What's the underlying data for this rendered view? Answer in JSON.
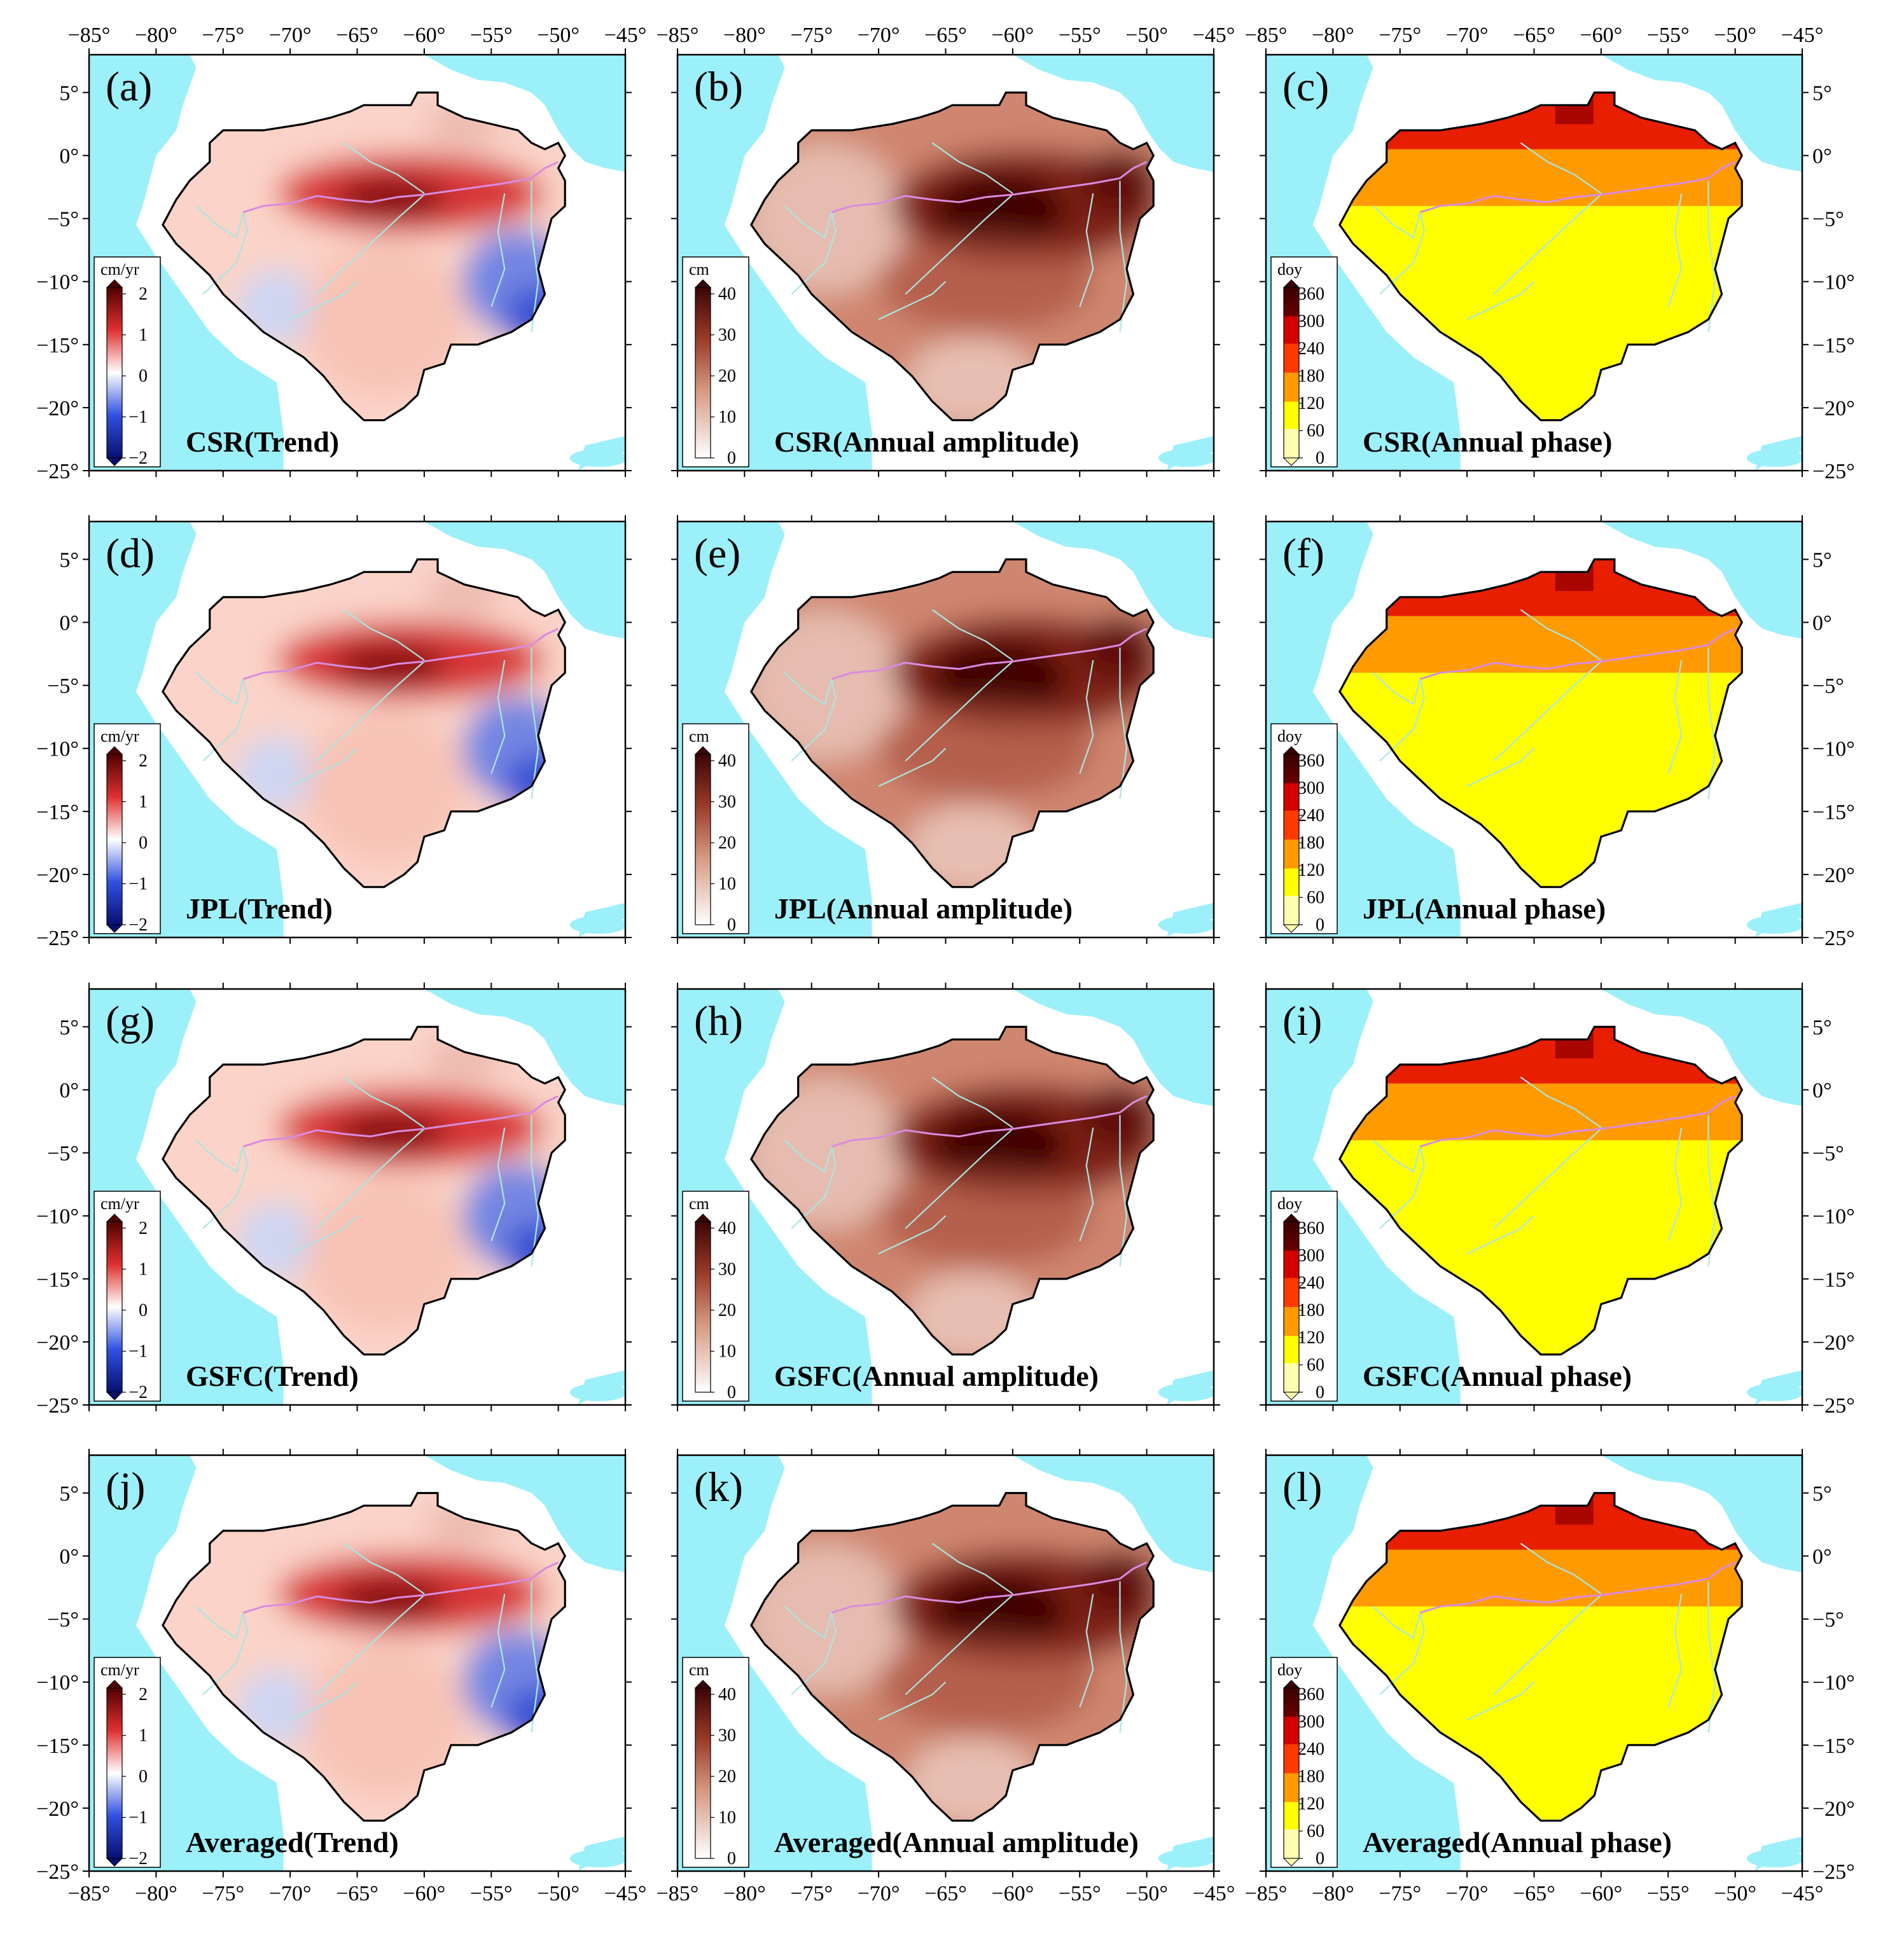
{
  "figure": {
    "x_axis_labels": [
      "−85°",
      "−80°",
      "−75°",
      "−70°",
      "−65°",
      "−60°",
      "−55°",
      "−50°",
      "−45°"
    ],
    "y_axis_labels": [
      "5°",
      "0°",
      "−5°",
      "−10°",
      "−15°",
      "−20°",
      "−25°"
    ],
    "lon_range": [
      -85,
      -45
    ],
    "lat_range": [
      -25,
      8
    ]
  },
  "colorbars": {
    "trend": {
      "unit": "cm/yr",
      "ticks": [
        "2",
        "1",
        "0",
        "−1",
        "−2"
      ]
    },
    "amplitude": {
      "unit": "cm",
      "ticks": [
        "40",
        "30",
        "20",
        "10",
        "0"
      ]
    },
    "phase": {
      "unit": "doy",
      "ticks": [
        "360",
        "300",
        "240",
        "180",
        "120",
        "60",
        "0"
      ]
    }
  },
  "panels": [
    {
      "letter": "(a)",
      "title": "CSR(Trend)",
      "kind": "trend"
    },
    {
      "letter": "(b)",
      "title": "CSR(Annual amplitude)",
      "kind": "amplitude"
    },
    {
      "letter": "(c)",
      "title": "CSR(Annual phase)",
      "kind": "phase"
    },
    {
      "letter": "(d)",
      "title": "JPL(Trend)",
      "kind": "trend"
    },
    {
      "letter": "(e)",
      "title": "JPL(Annual amplitude)",
      "kind": "amplitude"
    },
    {
      "letter": "(f)",
      "title": "JPL(Annual phase)",
      "kind": "phase"
    },
    {
      "letter": "(g)",
      "title": "GSFC(Trend)",
      "kind": "trend"
    },
    {
      "letter": "(h)",
      "title": "GSFC(Annual amplitude)",
      "kind": "amplitude"
    },
    {
      "letter": "(i)",
      "title": "GSFC(Annual phase)",
      "kind": "phase"
    },
    {
      "letter": "(j)",
      "title": "Averaged(Trend)",
      "kind": "trend"
    },
    {
      "letter": "(k)",
      "title": "Averaged(Annual amplitude)",
      "kind": "amplitude"
    },
    {
      "letter": "(l)",
      "title": "Averaged(Annual phase)",
      "kind": "phase"
    }
  ],
  "colors": {
    "ocean": "#9cf0fa",
    "land": "#ffffff",
    "river_main": "#d98be0",
    "river_trib": "#a9e6e3",
    "trend_blue": "#2c4bd6",
    "trend_red": "#c41616",
    "amp_dark": "#4a0a0a",
    "amp_mid": "#b4553c",
    "amp_light": "#f3dcd6",
    "phase_yellow": "#ffff00",
    "phase_orange": "#ff9a00",
    "phase_red": "#e81e00",
    "phase_darkred": "#9a0000"
  }
}
